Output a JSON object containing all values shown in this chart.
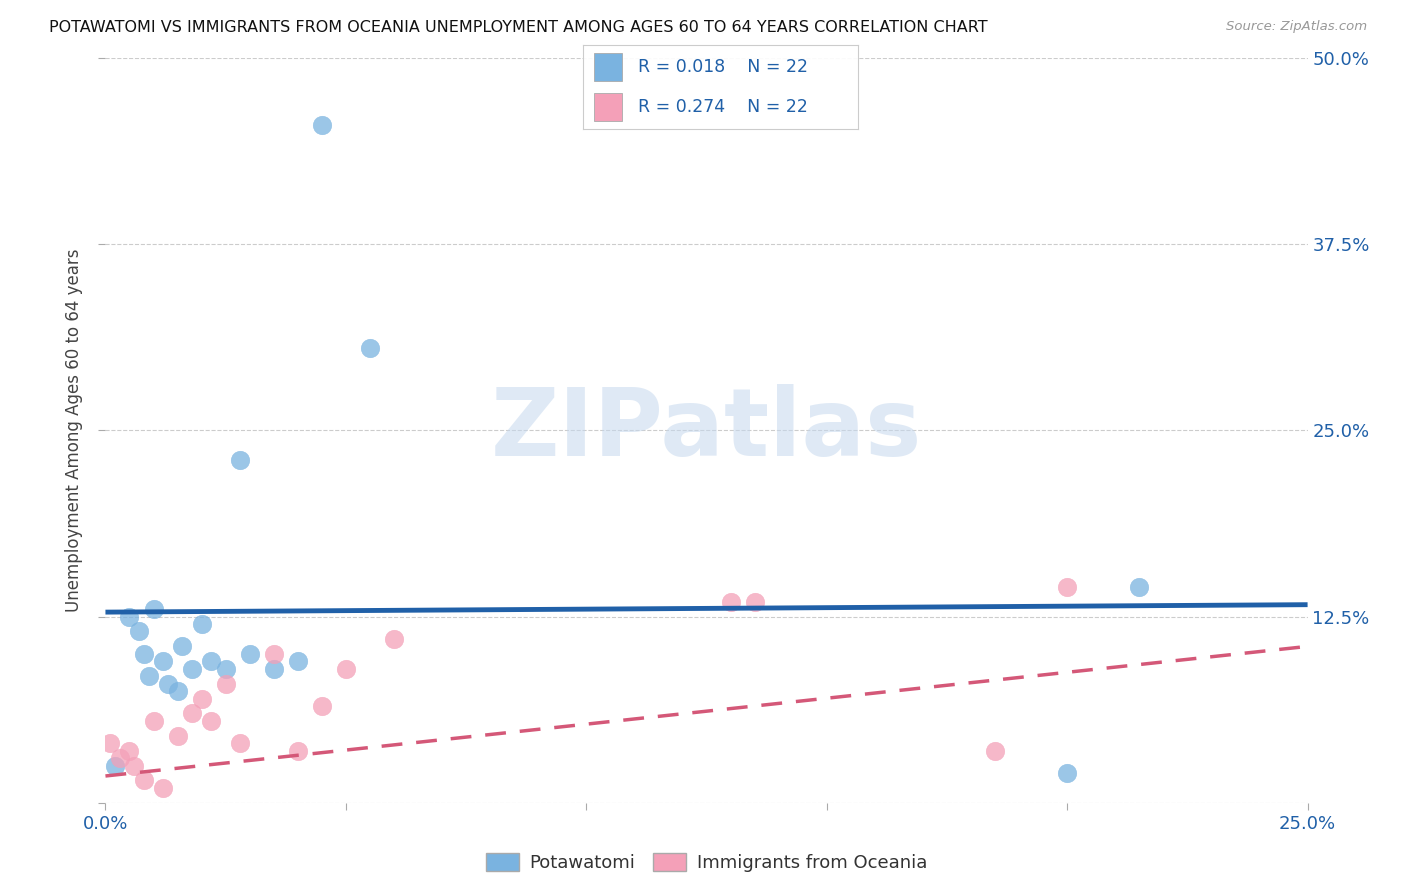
{
  "title": "POTAWATOMI VS IMMIGRANTS FROM OCEANIA UNEMPLOYMENT AMONG AGES 60 TO 64 YEARS CORRELATION CHART",
  "source": "Source: ZipAtlas.com",
  "ylabel": "Unemployment Among Ages 60 to 64 years",
  "xlim": [
    0.0,
    0.25
  ],
  "ylim": [
    0.0,
    0.5
  ],
  "xticks": [
    0.0,
    0.05,
    0.1,
    0.15,
    0.2,
    0.25
  ],
  "yticks": [
    0.0,
    0.125,
    0.25,
    0.375,
    0.5
  ],
  "blue_color": "#7ab3e0",
  "pink_color": "#f4a0b8",
  "blue_line_color": "#2060a8",
  "pink_line_color": "#d45878",
  "legend_label1": "Potawatomi",
  "legend_label2": "Immigrants from Oceania",
  "watermark_text": "ZIPatlas",
  "blue_scatter_x": [
    0.002,
    0.005,
    0.007,
    0.008,
    0.009,
    0.01,
    0.012,
    0.013,
    0.015,
    0.016,
    0.018,
    0.02,
    0.022,
    0.025,
    0.028,
    0.03,
    0.035,
    0.04,
    0.045,
    0.055,
    0.2,
    0.215
  ],
  "blue_scatter_y": [
    0.025,
    0.125,
    0.115,
    0.1,
    0.085,
    0.13,
    0.095,
    0.08,
    0.075,
    0.105,
    0.09,
    0.12,
    0.095,
    0.09,
    0.23,
    0.1,
    0.09,
    0.095,
    0.455,
    0.305,
    0.02,
    0.145
  ],
  "pink_scatter_x": [
    0.001,
    0.003,
    0.005,
    0.006,
    0.008,
    0.01,
    0.012,
    0.015,
    0.018,
    0.02,
    0.022,
    0.025,
    0.028,
    0.035,
    0.04,
    0.045,
    0.05,
    0.06,
    0.13,
    0.135,
    0.185,
    0.2
  ],
  "pink_scatter_y": [
    0.04,
    0.03,
    0.035,
    0.025,
    0.015,
    0.055,
    0.01,
    0.045,
    0.06,
    0.07,
    0.055,
    0.08,
    0.04,
    0.1,
    0.035,
    0.065,
    0.09,
    0.11,
    0.135,
    0.135,
    0.035,
    0.145
  ],
  "blue_trend_x": [
    0.0,
    0.25
  ],
  "blue_trend_y": [
    0.128,
    0.133
  ],
  "pink_trend_x": [
    0.0,
    0.25
  ],
  "pink_trend_y": [
    0.018,
    0.105
  ],
  "background_color": "#ffffff",
  "grid_color": "#cccccc"
}
